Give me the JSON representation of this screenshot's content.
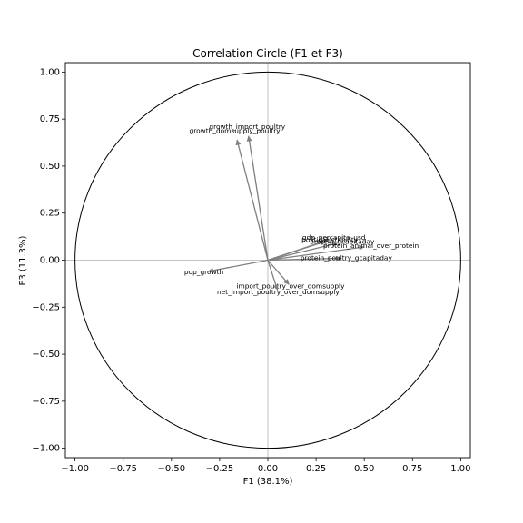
{
  "chart_data": {
    "type": "scatter",
    "title": "Correlation Circle (F1 et F3)",
    "xlabel": "F1 (38.1%)",
    "ylabel": "F3 (11.3%)",
    "xlim": [
      -1.05,
      1.05
    ],
    "ylim": [
      -1.05,
      1.05
    ],
    "xticks": [
      -1.0,
      -0.75,
      -0.5,
      -0.25,
      0.0,
      0.25,
      0.5,
      0.75,
      1.0
    ],
    "yticks": [
      -1.0,
      -0.75,
      -0.5,
      -0.25,
      0.0,
      0.25,
      0.5,
      0.75,
      1.0
    ],
    "xtick_labels": [
      "−1.00",
      "−0.75",
      "−0.50",
      "−0.25",
      "0.00",
      "0.25",
      "0.50",
      "0.75",
      "1.00"
    ],
    "ytick_labels": [
      "−1.00",
      "−0.75",
      "−0.50",
      "−0.25",
      "0.00",
      "0.25",
      "0.50",
      "0.75",
      "1.00"
    ],
    "unit_circle": true,
    "reference_lines": [
      0,
      0
    ],
    "arrow_color": "#808080",
    "circle_color": "#000000",
    "variables": [
      {
        "name": "growth_import_poultry",
        "x": -0.1,
        "y": 0.66
      },
      {
        "name": "growth_domsupply_poultry",
        "x": -0.16,
        "y": 0.64
      },
      {
        "name": "gdp_percapita_usd",
        "x": 0.32,
        "y": 0.11
      },
      {
        "name": "political_stability",
        "x": 0.3,
        "y": 0.1
      },
      {
        "name": "protein_gcapitaday",
        "x": 0.36,
        "y": 0.09
      },
      {
        "name": "protein_animal_over_protein",
        "x": 0.5,
        "y": 0.07
      },
      {
        "name": "protein_poultry_gcapitaday",
        "x": 0.38,
        "y": 0.01
      },
      {
        "name": "pop_growth",
        "x": -0.31,
        "y": -0.06
      },
      {
        "name": "import_poultry_over_domsupply",
        "x": 0.11,
        "y": -0.13
      },
      {
        "name": "net_import_poultry_over_domsupply",
        "x": 0.05,
        "y": -0.16
      }
    ]
  }
}
